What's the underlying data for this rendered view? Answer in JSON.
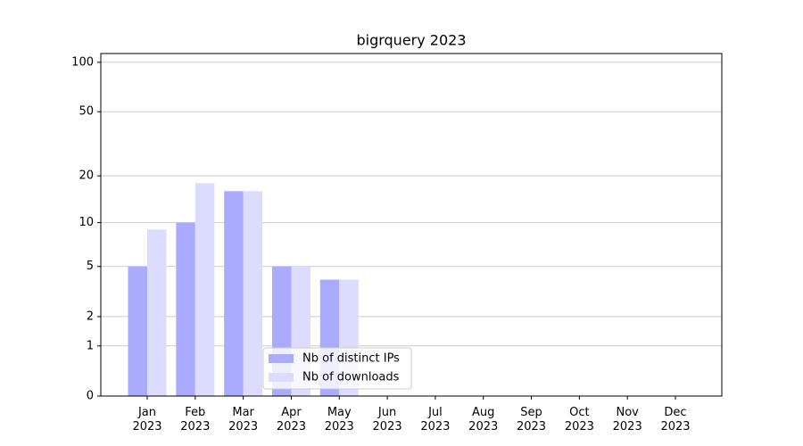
{
  "chart_data": {
    "type": "bar",
    "title": "bigrquery 2023",
    "categories": [
      "Jan 2023",
      "Feb 2023",
      "Mar 2023",
      "Apr 2023",
      "May 2023",
      "Jun 2023",
      "Jul 2023",
      "Aug 2023",
      "Sep 2023",
      "Oct 2023",
      "Nov 2023",
      "Dec 2023"
    ],
    "series": [
      {
        "name": "Nb of distinct IPs",
        "color": "#aaaaff",
        "values": [
          5,
          10,
          16,
          5,
          4,
          0,
          0,
          0,
          0,
          0,
          0,
          0
        ]
      },
      {
        "name": "Nb of downloads",
        "color": "#dcdcfe",
        "values": [
          9,
          18,
          16,
          5,
          4,
          0,
          0,
          0,
          0,
          0,
          0,
          0
        ]
      }
    ],
    "yscale": "log1p",
    "ylim": [
      0,
      113
    ],
    "yticks": [
      0,
      1,
      2,
      5,
      10,
      20,
      50,
      100
    ],
    "grid": true,
    "legend": "lower center"
  }
}
